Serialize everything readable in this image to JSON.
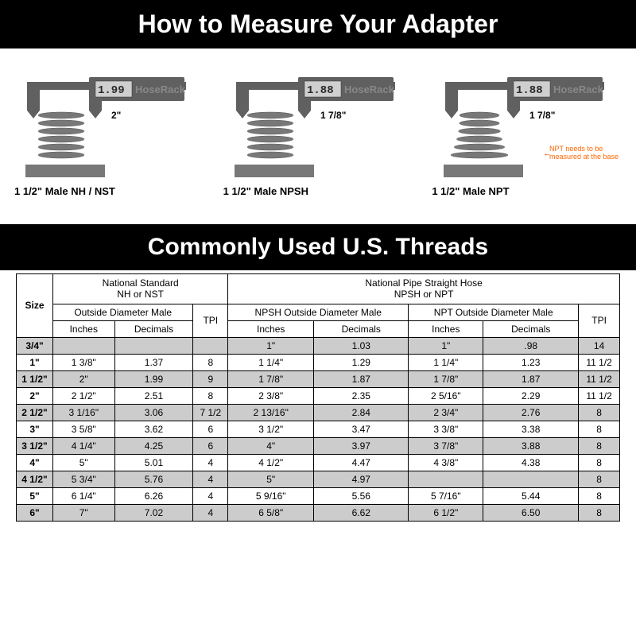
{
  "banners": {
    "top": "How to Measure Your Adapter",
    "table": "Commonly Used U.S. Threads"
  },
  "calipers": [
    {
      "reading": "1.99",
      "brand": "HoseRack",
      "dim": "2\"",
      "label": "1 1/2\" Male NH / NST",
      "tapered": false
    },
    {
      "reading": "1.88",
      "brand": "HoseRack",
      "dim": "1 7/8\"",
      "label": "1 1/2\" Male NPSH",
      "tapered": false
    },
    {
      "reading": "1.88",
      "brand": "HoseRack",
      "dim": "1 7/8\"",
      "label": "1 1/2\" Male NPT",
      "tapered": true,
      "note": "NPT needs to be measured at the base"
    }
  ],
  "table": {
    "headers": {
      "size": "Size",
      "group1": {
        "title": "National Standard",
        "sub": "NH or NST",
        "od": "Outside Diameter Male",
        "tpi": "TPI",
        "inches": "Inches",
        "decimals": "Decimals"
      },
      "group2": {
        "title": "National Pipe Straight Hose",
        "sub": "NPSH or NPT",
        "npsh_od": "NPSH Outside Diameter Male",
        "npt_od": "NPT Outside Diameter Male",
        "tpi": "TPI",
        "inches": "Inches",
        "decimals": "Decimals"
      }
    },
    "rows": [
      {
        "size": "3/4\"",
        "ns_in": "",
        "ns_dec": "",
        "ns_tpi": "",
        "npsh_in": "1\"",
        "npsh_dec": "1.03",
        "npt_in": "1\"",
        "npt_dec": ".98",
        "np_tpi": "14",
        "shade": true
      },
      {
        "size": "1\"",
        "ns_in": "1 3/8\"",
        "ns_dec": "1.37",
        "ns_tpi": "8",
        "npsh_in": "1 1/4\"",
        "npsh_dec": "1.29",
        "npt_in": "1 1/4\"",
        "npt_dec": "1.23",
        "np_tpi": "11 1/2",
        "shade": false
      },
      {
        "size": "1 1/2\"",
        "ns_in": "2\"",
        "ns_dec": "1.99",
        "ns_tpi": "9",
        "npsh_in": "1 7/8\"",
        "npsh_dec": "1.87",
        "npt_in": "1 7/8\"",
        "npt_dec": "1.87",
        "np_tpi": "11 1/2",
        "shade": true
      },
      {
        "size": "2\"",
        "ns_in": "2 1/2\"",
        "ns_dec": "2.51",
        "ns_tpi": "8",
        "npsh_in": "2 3/8\"",
        "npsh_dec": "2.35",
        "npt_in": "2 5/16\"",
        "npt_dec": "2.29",
        "np_tpi": "11 1/2",
        "shade": false
      },
      {
        "size": "2 1/2\"",
        "ns_in": "3 1/16\"",
        "ns_dec": "3.06",
        "ns_tpi": "7 1/2",
        "npsh_in": "2 13/16\"",
        "npsh_dec": "2.84",
        "npt_in": "2 3/4\"",
        "npt_dec": "2.76",
        "np_tpi": "8",
        "shade": true
      },
      {
        "size": "3\"",
        "ns_in": "3 5/8\"",
        "ns_dec": "3.62",
        "ns_tpi": "6",
        "npsh_in": "3 1/2\"",
        "npsh_dec": "3.47",
        "npt_in": "3 3/8\"",
        "npt_dec": "3.38",
        "np_tpi": "8",
        "shade": false
      },
      {
        "size": "3 1/2\"",
        "ns_in": "4 1/4\"",
        "ns_dec": "4.25",
        "ns_tpi": "6",
        "npsh_in": "4\"",
        "npsh_dec": "3.97",
        "npt_in": "3 7/8\"",
        "npt_dec": "3.88",
        "np_tpi": "8",
        "shade": true
      },
      {
        "size": "4\"",
        "ns_in": "5\"",
        "ns_dec": "5.01",
        "ns_tpi": "4",
        "npsh_in": "4 1/2\"",
        "npsh_dec": "4.47",
        "npt_in": "4 3/8\"",
        "npt_dec": "4.38",
        "np_tpi": "8",
        "shade": false
      },
      {
        "size": "4 1/2\"",
        "ns_in": "5 3/4\"",
        "ns_dec": "5.76",
        "ns_tpi": "4",
        "npsh_in": "5\"",
        "npsh_dec": "4.97",
        "npt_in": "",
        "npt_dec": "",
        "np_tpi": "8",
        "shade": true
      },
      {
        "size": "5\"",
        "ns_in": "6 1/4\"",
        "ns_dec": "6.26",
        "ns_tpi": "4",
        "npsh_in": "5 9/16\"",
        "npsh_dec": "5.56",
        "npt_in": "5 7/16\"",
        "npt_dec": "5.44",
        "np_tpi": "8",
        "shade": false
      },
      {
        "size": "6\"",
        "ns_in": "7\"",
        "ns_dec": "7.02",
        "ns_tpi": "4",
        "npsh_in": "6 5/8\"",
        "npsh_dec": "6.62",
        "npt_in": "6 1/2\"",
        "npt_dec": "6.50",
        "np_tpi": "8",
        "shade": true
      }
    ]
  },
  "styling": {
    "banner_bg": "#000000",
    "banner_fg": "#ffffff",
    "shade_bg": "#cccccc",
    "note_color": "#ff6600",
    "caliper_body": "#606060",
    "caliper_display_bg": "#cfcfcf",
    "thread_color": "#787878",
    "base_color": "#787878"
  }
}
